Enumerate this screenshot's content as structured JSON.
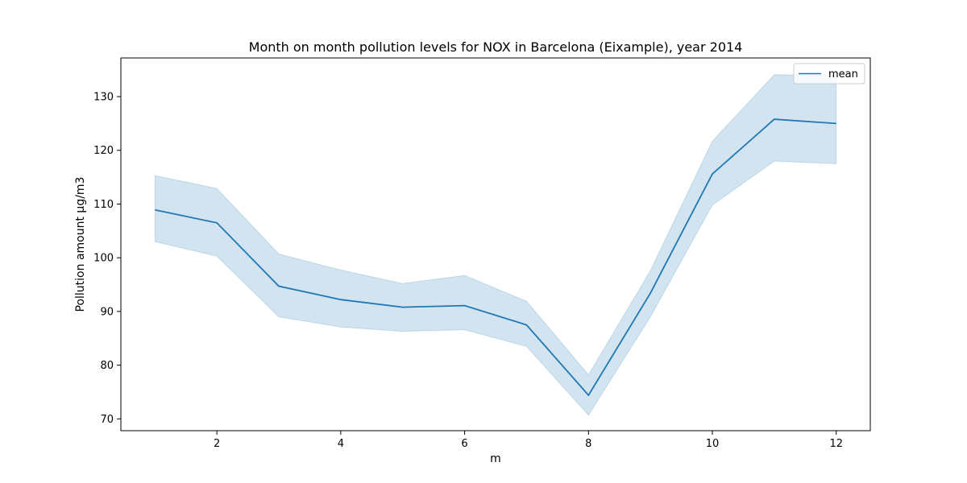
{
  "chart_data": {
    "type": "line",
    "title": "Month on month pollution levels for NOX in Barcelona (Eixample), year 2014",
    "xlabel": "m",
    "ylabel": "Pollution amount µg/m3",
    "xlim": [
      0.45,
      12.55
    ],
    "ylim": [
      67.8,
      137.2
    ],
    "xticks": [
      2,
      4,
      6,
      8,
      10,
      12
    ],
    "yticks": [
      70,
      80,
      90,
      100,
      110,
      120,
      130
    ],
    "grid": false,
    "legend_position": "top-right",
    "colors": {
      "line": "#1f77b4",
      "band": "#1f77b4"
    },
    "series": [
      {
        "name": "mean",
        "x": [
          1,
          2,
          3,
          4,
          5,
          6,
          7,
          8,
          9,
          10,
          11,
          12
        ],
        "values": [
          108.9,
          106.5,
          94.7,
          92.2,
          90.8,
          91.1,
          87.5,
          74.4,
          93.4,
          115.6,
          125.8,
          125.0
        ],
        "lower": [
          103.0,
          100.3,
          89.0,
          87.1,
          86.3,
          86.6,
          83.5,
          70.7,
          89.0,
          109.8,
          118.0,
          117.5
        ],
        "upper": [
          115.3,
          112.9,
          100.7,
          97.7,
          95.2,
          96.7,
          91.9,
          78.2,
          97.6,
          121.7,
          134.1,
          133.9
        ]
      }
    ]
  }
}
